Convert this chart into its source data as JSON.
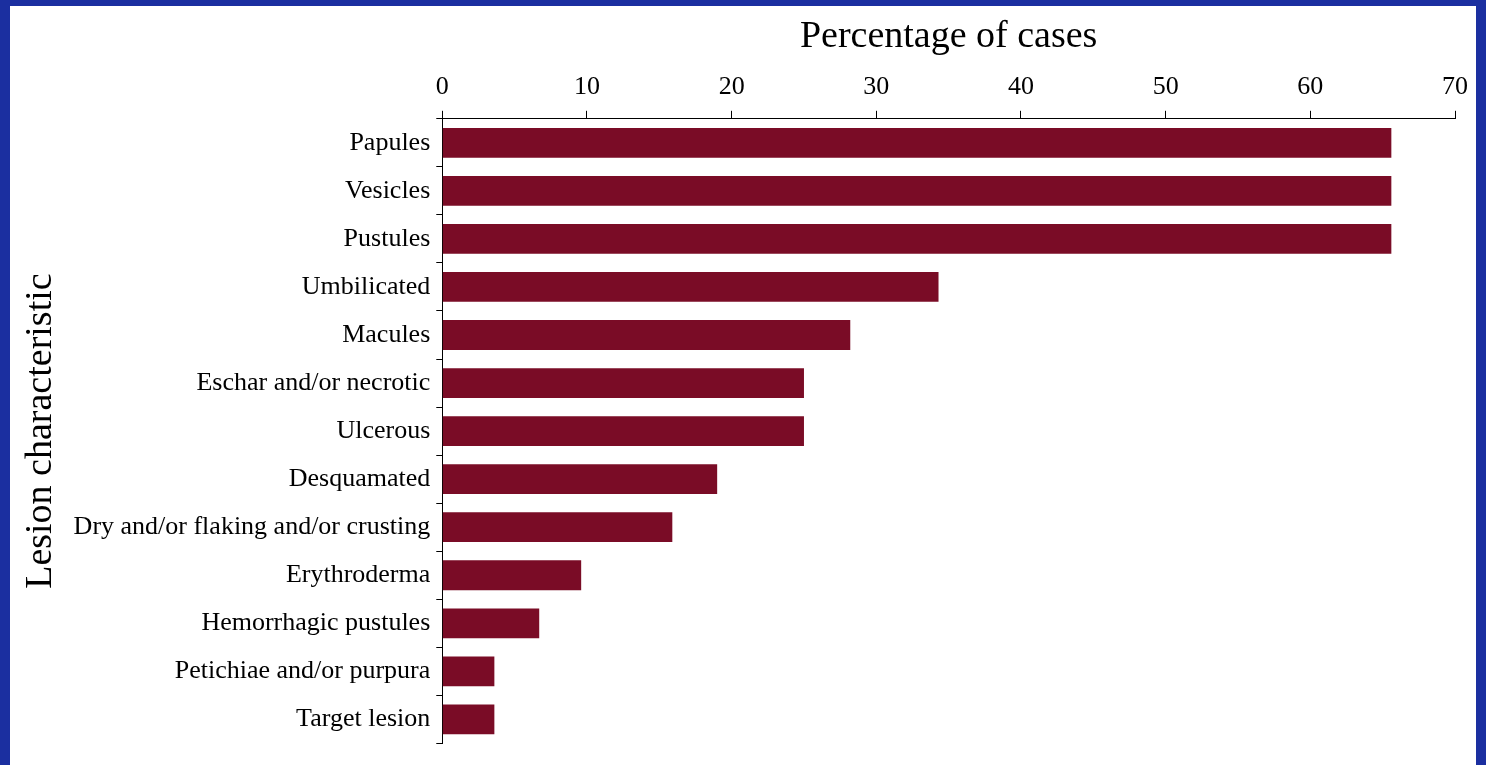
{
  "chart_data": {
    "type": "bar",
    "orientation": "horizontal",
    "xlabel": "Percentage of cases",
    "ylabel": "Lesion characteristic",
    "categories": [
      "Papules",
      "Vesicles",
      "Pustules",
      "Umbilicated",
      "Macules",
      "Eschar and/or necrotic",
      "Ulcerous",
      "Desquamated",
      "Dry and/or flaking and/or crusting",
      "Erythroderma",
      "Hemorrhagic pustules",
      "Petichiae and/or purpura",
      "Target lesion"
    ],
    "values": [
      65.6,
      65.6,
      65.6,
      34.3,
      28.2,
      25.0,
      25.0,
      19.0,
      15.9,
      9.6,
      6.7,
      3.6,
      3.6
    ],
    "color": "#7a0c26",
    "xlim": [
      0,
      70
    ],
    "xticks": [
      0,
      10,
      20,
      30,
      40,
      50,
      60,
      70
    ],
    "grid": false,
    "legend": false
  }
}
